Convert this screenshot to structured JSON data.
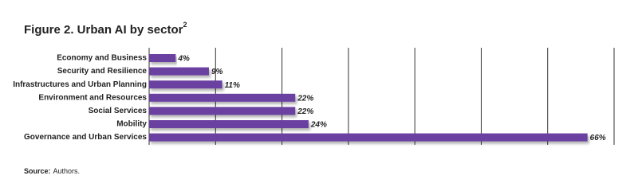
{
  "chart_data": {
    "type": "bar",
    "orientation": "horizontal",
    "title": "Figure 2. Urban AI by sector",
    "title_footnote": "2",
    "categories": [
      "Economy and Business",
      "Security and Resilience",
      "Infrastructures and Urban Planning",
      "Environment and Resources",
      "Social Services",
      "Mobility",
      "Governance and Urban Services"
    ],
    "values": [
      4,
      9,
      11,
      22,
      22,
      24,
      66
    ],
    "value_labels": [
      "4%",
      "9%",
      "11%",
      "22%",
      "22%",
      "24%",
      "66%"
    ],
    "color": "#6b3fa0",
    "xlim": [
      0,
      70
    ],
    "xticks": [
      0,
      10,
      20,
      30,
      40,
      50,
      60,
      70
    ],
    "grid": true,
    "source_label": "Source:",
    "source": "Authors."
  }
}
